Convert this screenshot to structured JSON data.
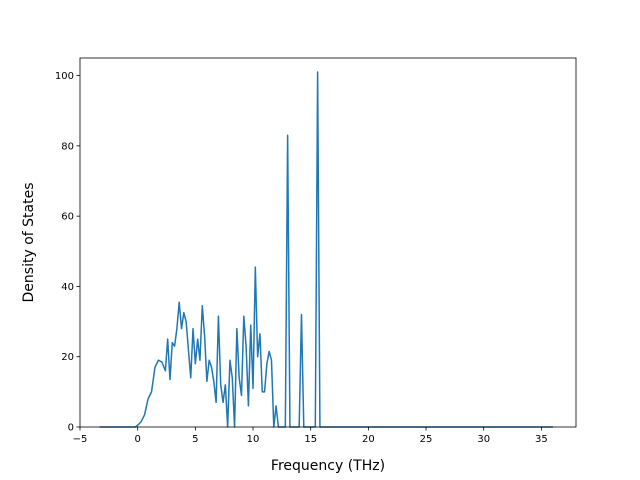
{
  "chart_data": {
    "type": "line",
    "title": "",
    "xlabel": "Frequency (THz)",
    "ylabel": "Density of States",
    "xlim": [
      -5,
      38
    ],
    "ylim": [
      0,
      105
    ],
    "xticks": [
      -5,
      0,
      5,
      10,
      15,
      20,
      25,
      30,
      35
    ],
    "xtick_labels": [
      "−5",
      "0",
      "5",
      "10",
      "15",
      "20",
      "25",
      "30",
      "35"
    ],
    "yticks": [
      0,
      20,
      40,
      60,
      80,
      100
    ],
    "ytick_labels": [
      "0",
      "20",
      "40",
      "60",
      "80",
      "100"
    ],
    "grid": false,
    "legend": "none",
    "series_color": "#1f77b4",
    "series": [
      {
        "x": [
          -3.3,
          -0.2,
          0.0,
          0.3,
          0.6,
          0.9,
          1.2,
          1.5,
          1.8,
          2.1,
          2.4,
          2.6,
          2.8,
          3.0,
          3.2,
          3.4,
          3.6,
          3.8,
          4.0,
          4.2,
          4.4,
          4.6,
          4.8,
          5.0,
          5.2,
          5.4,
          5.6,
          5.8,
          6.0,
          6.2,
          6.4,
          6.6,
          6.8,
          7.0,
          7.2,
          7.4,
          7.6,
          7.8,
          8.0,
          8.2,
          8.4,
          8.6,
          8.8,
          9.0,
          9.2,
          9.4,
          9.6,
          9.8,
          10.0,
          10.2,
          10.4,
          10.6,
          10.8,
          11.0,
          11.2,
          11.4,
          11.6,
          11.8,
          12.0,
          12.2,
          12.4,
          12.6,
          12.8,
          13.0,
          13.2,
          13.4,
          13.6,
          13.8,
          14.0,
          14.2,
          14.4,
          14.6,
          14.8,
          15.0,
          15.2,
          15.4,
          15.6,
          15.8,
          16.0,
          16.2,
          36.0
        ],
        "y": [
          0,
          0,
          0.5,
          1.5,
          3.5,
          8,
          10,
          17,
          19,
          18.5,
          16,
          25,
          13.5,
          24,
          23,
          28,
          35.5,
          28,
          32.5,
          30,
          22,
          14,
          28,
          18,
          25,
          19,
          34.5,
          26,
          13,
          19,
          17,
          13,
          7,
          31.5,
          12,
          7,
          12,
          0,
          19,
          14,
          0,
          28,
          14,
          9,
          31.5,
          23,
          6,
          29,
          11,
          45.5,
          20,
          26.5,
          10,
          10,
          18,
          21.5,
          19,
          0,
          6,
          0,
          0,
          0,
          0,
          83,
          0,
          0,
          0,
          0,
          0,
          32,
          0,
          0,
          0,
          0,
          0,
          0,
          101,
          0,
          0,
          0,
          0
        ]
      }
    ]
  }
}
